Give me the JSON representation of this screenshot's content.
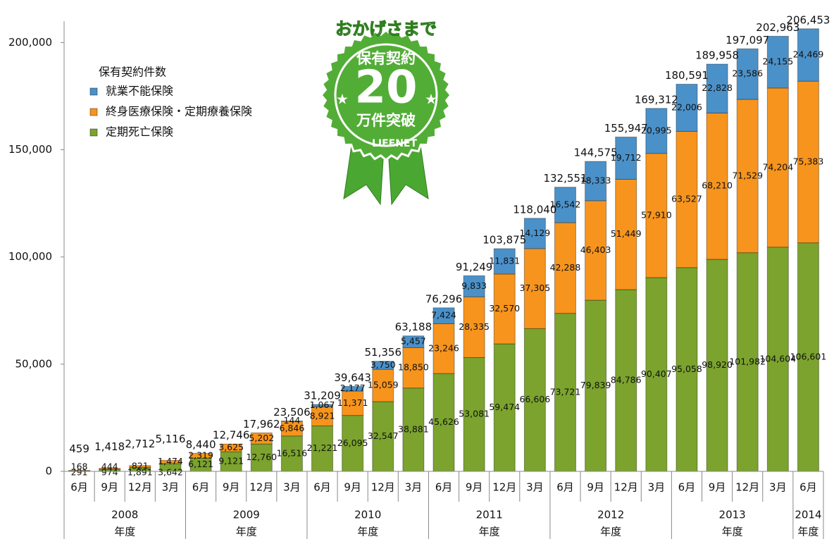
{
  "chart_data": {
    "type": "stacked_bar",
    "legend_title": "保有契約件数",
    "categories": [
      "6月",
      "9月",
      "12月",
      "3月",
      "6月",
      "9月",
      "12月",
      "3月",
      "6月",
      "9月",
      "12月",
      "3月",
      "6月",
      "9月",
      "12月",
      "3月",
      "6月",
      "9月",
      "12月",
      "3月",
      "6月",
      "9月",
      "12月",
      "3月",
      "6月"
    ],
    "category_years": [
      "2008",
      null,
      null,
      null,
      "2009",
      null,
      null,
      null,
      "2010",
      null,
      null,
      null,
      "2011",
      null,
      null,
      null,
      "2012",
      null,
      null,
      null,
      "2013",
      null,
      null,
      null,
      "2014"
    ],
    "year_suffix": "年度",
    "series": [
      {
        "name": "定期死亡保険",
        "color": "#7ba32d",
        "values": [
          291,
          974,
          1891,
          3642,
          6121,
          9121,
          12760,
          16516,
          21221,
          26095,
          32547,
          38881,
          45626,
          53081,
          59474,
          66606,
          73721,
          79839,
          84786,
          90407,
          95058,
          98920,
          101982,
          104604,
          106601
        ],
        "value_labels": [
          "291",
          "974",
          "1,891",
          "3,642",
          "6,121",
          "9,121",
          "12,760",
          "16,516",
          "21,221",
          "26,095",
          "32,547",
          "38,881",
          "45,626",
          "53,081",
          "59,474",
          "66,606",
          "73,721",
          "79,839",
          "84,786",
          "90,407",
          "95,058",
          "98,920",
          "101,982",
          "104,604",
          "106,601"
        ]
      },
      {
        "name": "終身医療保険・定期療養保険",
        "color": "#f7941d",
        "values": [
          168,
          444,
          821,
          1474,
          2319,
          3625,
          5202,
          6846,
          8921,
          11371,
          15059,
          18850,
          23246,
          28335,
          32570,
          37305,
          42288,
          46403,
          51449,
          57910,
          63527,
          68210,
          71529,
          74204,
          75383
        ],
        "value_labels": [
          "168",
          "444",
          "821",
          "1,474",
          "2,319",
          "3,625",
          "5,202",
          "6,846",
          "8,921",
          "11,371",
          "15,059",
          "18,850",
          "23,246",
          "28,335",
          "32,570",
          "37,305",
          "42,288",
          "46,403",
          "51,449",
          "57,910",
          "63,527",
          "68,210",
          "71,529",
          "74,204",
          "75,383"
        ]
      },
      {
        "name": "就業不能保険",
        "color": "#4b91c9",
        "values": [
          null,
          null,
          null,
          null,
          null,
          null,
          null,
          144,
          1067,
          2177,
          3750,
          5457,
          7424,
          9833,
          11831,
          14129,
          16542,
          18333,
          19712,
          20995,
          22006,
          22828,
          23586,
          24155,
          24469
        ],
        "value_labels": [
          null,
          null,
          null,
          null,
          null,
          null,
          null,
          "144",
          "1,067",
          "2,177",
          "3,750",
          "5,457",
          "7,424",
          "9,833",
          "11,831",
          "14,129",
          "16,542",
          "18,333",
          "19,712",
          "20,995",
          "22,006",
          "22,828",
          "23,586",
          "24,155",
          "24,469"
        ]
      }
    ],
    "totals": [
      459,
      1418,
      2712,
      5116,
      8440,
      12746,
      17962,
      23506,
      31209,
      39643,
      51356,
      63188,
      76296,
      91249,
      103875,
      118040,
      132551,
      144575,
      155947,
      169312,
      180591,
      189958,
      197097,
      202963,
      206453
    ],
    "total_labels": [
      "459",
      "1,418",
      "2,712",
      "5,116",
      "8,440",
      "12,746",
      "17,962",
      "23,506",
      "31,209",
      "39,643",
      "51,356",
      "63,188",
      "76,296",
      "91,249",
      "103,875",
      "118,040",
      "132,551",
      "144,575",
      "155,947",
      "169,312",
      "180,591",
      "189,958",
      "197,097",
      "202,963",
      "206,453"
    ],
    "ylim": [
      0,
      210000
    ],
    "yticks": [
      0,
      {
        "value": 50000,
        "label": "50,000"
      },
      {
        "value": 100000,
        "label": "100,000"
      },
      {
        "value": 150000,
        "label": "150,000"
      },
      {
        "value": 200000,
        "label": "200,000"
      }
    ],
    "badge": {
      "top": "おかげさまで",
      "line1": "保有契約",
      "number": "20",
      "line2": "万件突破",
      "brand": "LIFENET"
    }
  }
}
